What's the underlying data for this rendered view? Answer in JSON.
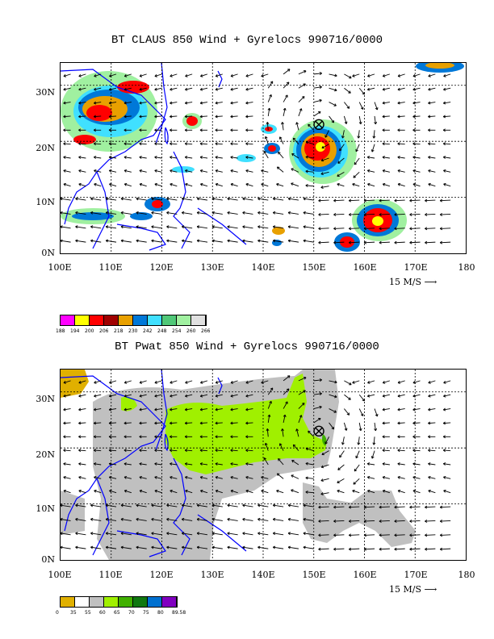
{
  "panels": [
    {
      "title": "BT CLAUS 850 Wind + Gyrelocs 990716/0000",
      "lat_labels": [
        "30N",
        "20N",
        "10N",
        "0N"
      ],
      "lon_labels": [
        "100E",
        "110E",
        "120E",
        "130E",
        "140E",
        "150E",
        "160E",
        "170E",
        "180"
      ],
      "ref_vector_label": "15 M/S",
      "colorbar": {
        "colors": [
          "#ff00ff",
          "#ffff00",
          "#ff0000",
          "#a00000",
          "#e8a000",
          "#0078d8",
          "#40e0ff",
          "#50c878",
          "#a0f0a0",
          "#e0e0e0"
        ],
        "labels": [
          "188",
          "194",
          "200",
          "206",
          "218",
          "230",
          "242",
          "248",
          "254",
          "260",
          "266"
        ]
      }
    },
    {
      "title": "BT Pwat 850 Wind + Gyrelocs 990716/0000",
      "lat_labels": [
        "30N",
        "20N",
        "10N",
        "0N"
      ],
      "lon_labels": [
        "100E",
        "110E",
        "120E",
        "130E",
        "140E",
        "150E",
        "160E",
        "170E",
        "180"
      ],
      "ref_vector_label": "15 M/S",
      "colorbar": {
        "colors": [
          "#e0b000",
          "#ffffff",
          "#c0c0c0",
          "#a0f000",
          "#40b000",
          "#107810",
          "#0070d0",
          "#8000c0"
        ],
        "labels": [
          "0",
          "35",
          "55",
          "60",
          "65",
          "70",
          "75",
          "80",
          "89.58"
        ]
      }
    }
  ],
  "gyre_center": {
    "lon": 151,
    "lat": 23
  },
  "colors": {
    "coast": "#0000ff",
    "grid": "#000000"
  }
}
